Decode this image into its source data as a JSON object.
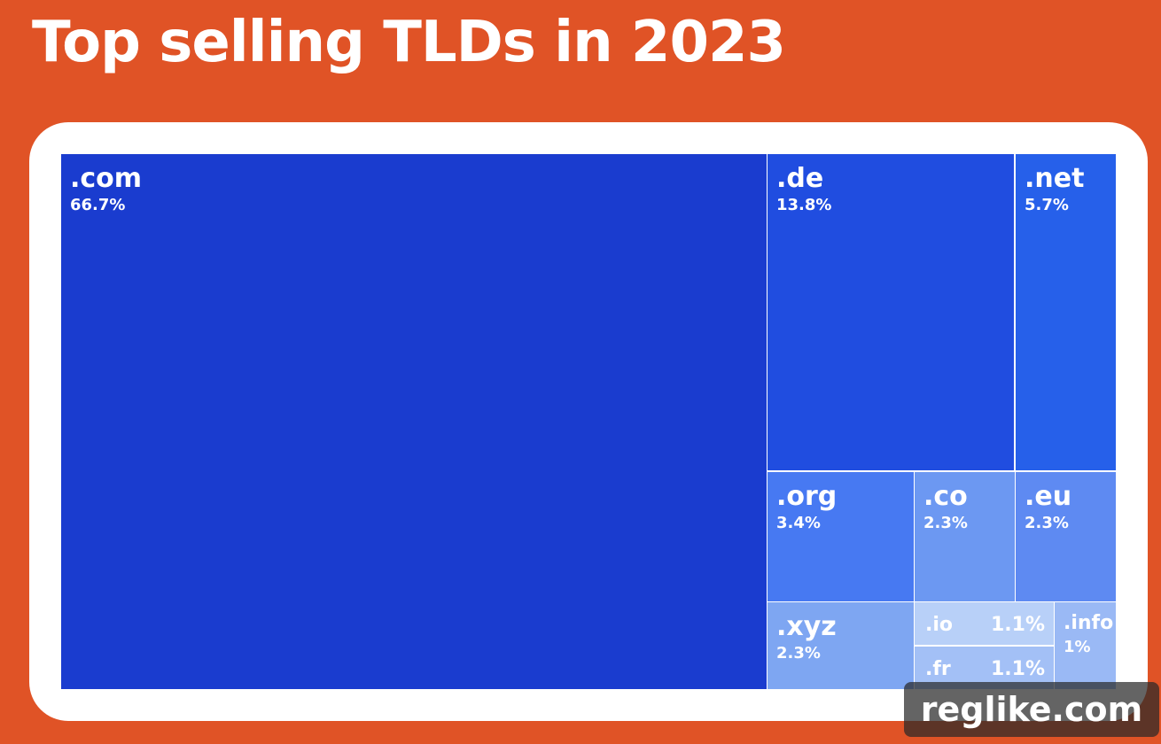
{
  "title": "Top selling TLDs in 2023",
  "watermark": "reglike.com",
  "colors": {
    "background": "#e05326",
    "card": "#ffffff"
  },
  "chart_data": {
    "type": "treemap",
    "title": "Top selling TLDs in 2023",
    "unit": "%",
    "items": [
      {
        "label": ".com",
        "value": 66.7,
        "value_label": "66.7%",
        "color": "#1a3ccf"
      },
      {
        "label": ".de",
        "value": 13.8,
        "value_label": "13.8%",
        "color": "#204de0"
      },
      {
        "label": ".net",
        "value": 5.7,
        "value_label": "5.7%",
        "color": "#2660ea"
      },
      {
        "label": ".org",
        "value": 3.4,
        "value_label": "3.4%",
        "color": "#4779f2"
      },
      {
        "label": ".co",
        "value": 2.3,
        "value_label": "2.3%",
        "color": "#6c98f2"
      },
      {
        "label": ".eu",
        "value": 2.3,
        "value_label": "2.3%",
        "color": "#5e8af2"
      },
      {
        "label": ".xyz",
        "value": 2.3,
        "value_label": "2.3%",
        "color": "#7ea6f2"
      },
      {
        "label": ".io",
        "value": 1.1,
        "value_label": "1.1%",
        "color": "#b8d0f8"
      },
      {
        "label": ".fr",
        "value": 1.1,
        "value_label": "1.1%",
        "color": "#a3c0f6"
      },
      {
        "label": ".info",
        "value": 1,
        "value_label": "1%",
        "color": "#9ab9f5"
      }
    ]
  }
}
